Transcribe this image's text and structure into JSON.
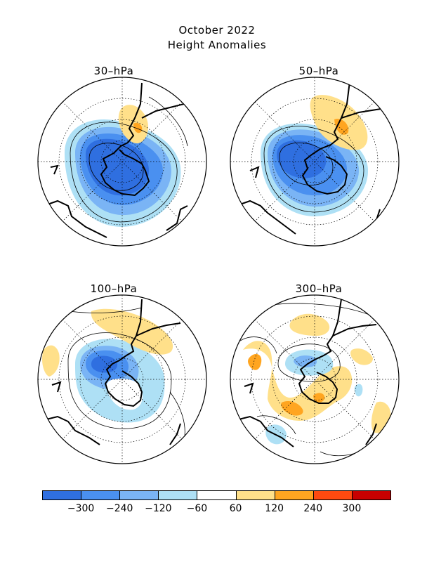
{
  "title_line1": "October 2022",
  "title_line2": "Height Anomalies",
  "panels": [
    {
      "label": "30–hPa"
    },
    {
      "label": "50–hPa"
    },
    {
      "label": "100–hPa"
    },
    {
      "label": "300–hPa"
    }
  ],
  "colorbar": {
    "colors": [
      "#2f6fe0",
      "#4a90f0",
      "#7ab4f5",
      "#aee0f5",
      "#ffffff",
      "#ffe08a",
      "#ffa520",
      "#ff4a10",
      "#c80000"
    ],
    "tick_labels": [
      "−300",
      "−240",
      "−120",
      "−60",
      "60",
      "120",
      "240",
      "300"
    ]
  }
}
